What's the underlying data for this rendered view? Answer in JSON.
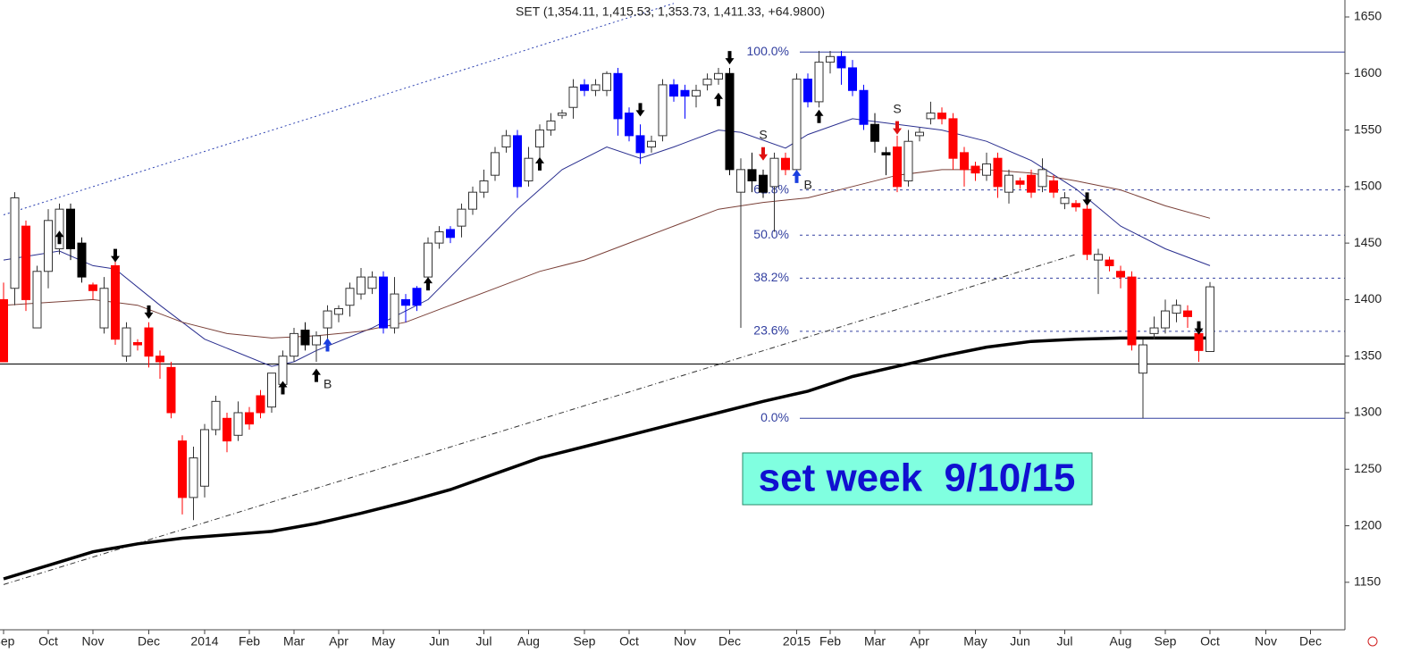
{
  "chart_data": {
    "type": "candlestick",
    "title": "SET (1,354.11, 1,415.53, 1,353.73, 1,411.33, +64.9800)",
    "annotation": "set week  9/10/15",
    "categories": [
      "Sep",
      null,
      null,
      null,
      "Oct",
      null,
      null,
      null,
      "Nov",
      null,
      null,
      null,
      null,
      "Dec",
      null,
      null,
      null,
      null,
      "2014",
      null,
      null,
      null,
      "Feb",
      null,
      null,
      null,
      "Mar",
      null,
      null,
      null,
      "Apr",
      null,
      null,
      null,
      "May",
      null,
      null,
      null,
      null,
      "Jun",
      null,
      null,
      null,
      "Jul",
      null,
      null,
      null,
      "Aug",
      null,
      null,
      null,
      null,
      "Sep",
      null,
      null,
      null,
      "Oct",
      null,
      null,
      null,
      null,
      "Nov",
      null,
      null,
      null,
      "Dec",
      null,
      null,
      null,
      null,
      null,
      "2015",
      null,
      null,
      "Feb",
      null,
      null,
      null,
      "Mar",
      null,
      null,
      null,
      "Apr",
      null,
      null,
      null,
      null,
      "May",
      null,
      null,
      null,
      "Jun",
      null,
      null,
      null,
      "Jul",
      null,
      null,
      null,
      null,
      "Aug",
      null,
      null,
      null,
      "Sep",
      null,
      null,
      null,
      "Oct",
      null,
      null,
      null,
      null,
      "Nov",
      null,
      null,
      null,
      "Dec",
      null,
      null
    ],
    "open": [
      1400,
      1410,
      1465,
      1375,
      1425,
      1445,
      1480,
      1450,
      1413,
      1375,
      1430,
      1350,
      1362,
      1375,
      1350,
      1340,
      1275,
      1225,
      1235,
      1285,
      1295,
      1280,
      1300,
      1315,
      1305,
      1325,
      1350,
      1373,
      1360,
      1375,
      1387,
      1395,
      1405,
      1410,
      1420,
      1375,
      1400,
      1410,
      1420,
      1450,
      1462,
      1465,
      1480,
      1495,
      1510,
      1535,
      1545,
      1505,
      1535,
      1550,
      1563,
      1570,
      1590,
      1585,
      1585,
      1600,
      1565,
      1545,
      1535,
      1545,
      1590,
      1585,
      1580,
      1590,
      1595,
      1600,
      1495,
      1515,
      1510,
      1500,
      1525,
      1515,
      1595,
      1575,
      1610,
      1615,
      1605,
      1585,
      1555,
      1530,
      1535,
      1505,
      1545,
      1560,
      1565,
      1560,
      1530,
      1518,
      1510,
      1525,
      1495,
      1505,
      1510,
      1500,
      1505,
      1485,
      1485,
      1480,
      1435,
      1435,
      1425,
      1420,
      1335,
      1370,
      1375,
      1388,
      1390,
      1370,
      1354.11,
      null,
      null,
      null,
      null,
      null,
      null,
      null,
      null,
      null,
      null,
      null
    ],
    "high": [
      1415,
      1495,
      1470,
      1430,
      1480,
      1485,
      1485,
      1455,
      1415,
      1420,
      1435,
      1380,
      1365,
      1380,
      1355,
      1345,
      1280,
      1270,
      1290,
      1315,
      1300,
      1310,
      1305,
      1320,
      1335,
      1355,
      1375,
      1380,
      1372,
      1395,
      1395,
      1415,
      1428,
      1425,
      1425,
      1420,
      1405,
      1412,
      1455,
      1465,
      1465,
      1485,
      1500,
      1515,
      1535,
      1550,
      1550,
      1535,
      1555,
      1565,
      1568,
      1595,
      1595,
      1595,
      1602,
      1605,
      1570,
      1555,
      1545,
      1595,
      1595,
      1590,
      1590,
      1600,
      1605,
      1605,
      1525,
      1530,
      1515,
      1530,
      1530,
      1600,
      1600,
      1620,
      1620,
      1620,
      1612,
      1590,
      1565,
      1535,
      1545,
      1550,
      1552,
      1575,
      1570,
      1565,
      1535,
      1522,
      1530,
      1530,
      1515,
      1508,
      1515,
      1525,
      1510,
      1495,
      1488,
      1485,
      1445,
      1438,
      1430,
      1425,
      1365,
      1385,
      1400,
      1400,
      1395,
      1375,
      1415.53,
      null,
      null,
      null,
      null,
      null,
      null,
      null,
      null,
      null,
      null,
      null
    ],
    "low": [
      1345,
      1395,
      1390,
      1380,
      1410,
      1440,
      1435,
      1415,
      1400,
      1370,
      1360,
      1345,
      1355,
      1340,
      1330,
      1295,
      1210,
      1205,
      1225,
      1280,
      1265,
      1275,
      1285,
      1295,
      1300,
      1320,
      1345,
      1355,
      1345,
      1365,
      1380,
      1385,
      1400,
      1405,
      1370,
      1370,
      1380,
      1390,
      1415,
      1445,
      1450,
      1455,
      1475,
      1490,
      1505,
      1530,
      1490,
      1500,
      1520,
      1545,
      1560,
      1560,
      1580,
      1580,
      1580,
      1545,
      1540,
      1520,
      1530,
      1540,
      1575,
      1560,
      1570,
      1585,
      1590,
      1510,
      1375,
      1495,
      1490,
      1460,
      1510,
      1510,
      1570,
      1570,
      1600,
      1590,
      1580,
      1550,
      1530,
      1510,
      1495,
      1500,
      1540,
      1555,
      1555,
      1515,
      1500,
      1505,
      1505,
      1490,
      1485,
      1498,
      1490,
      1495,
      1490,
      1480,
      1478,
      1435,
      1405,
      1425,
      1410,
      1355,
      1295,
      1365,
      1370,
      1380,
      1375,
      1345,
      1353.73,
      null,
      null,
      null,
      null,
      null,
      null,
      null,
      null,
      null,
      null,
      null
    ],
    "close": [
      1345,
      1490,
      1400,
      1425,
      1470,
      1480,
      1445,
      1420,
      1408,
      1410,
      1365,
      1375,
      1360,
      1350,
      1345,
      1300,
      1225,
      1260,
      1285,
      1310,
      1275,
      1300,
      1290,
      1300,
      1335,
      1350,
      1370,
      1360,
      1368,
      1390,
      1392,
      1410,
      1420,
      1420,
      1375,
      1405,
      1395,
      1395,
      1450,
      1460,
      1455,
      1480,
      1495,
      1505,
      1530,
      1545,
      1500,
      1525,
      1550,
      1558,
      1565,
      1588,
      1585,
      1590,
      1600,
      1560,
      1545,
      1530,
      1540,
      1590,
      1580,
      1580,
      1585,
      1595,
      1600,
      1515,
      1515,
      1505,
      1495,
      1525,
      1515,
      1595,
      1575,
      1610,
      1615,
      1605,
      1585,
      1555,
      1540,
      1528,
      1500,
      1540,
      1548,
      1565,
      1560,
      1525,
      1515,
      1512,
      1520,
      1500,
      1510,
      1502,
      1495,
      1515,
      1495,
      1490,
      1482,
      1440,
      1440,
      1430,
      1420,
      1360,
      1360,
      1375,
      1390,
      1395,
      1385,
      1355,
      1411.33,
      null,
      null,
      null,
      null,
      null,
      null,
      null,
      null,
      null,
      null,
      null
    ],
    "candle_colors": [
      "red",
      "white",
      "red",
      "white",
      "white",
      "white",
      "black",
      "black",
      "red",
      "white",
      "red",
      "white",
      "red",
      "red",
      "red",
      "red",
      "red",
      "white",
      "white",
      "white",
      "red",
      "white",
      "red",
      "red",
      "white",
      "white",
      "white",
      "black",
      "white",
      "white",
      "white",
      "white",
      "white",
      "white",
      "blue",
      "white",
      "blue",
      "blue",
      "white",
      "white",
      "blue",
      "white",
      "white",
      "white",
      "white",
      "white",
      "blue",
      "white",
      "white",
      "white",
      "white",
      "white",
      "blue",
      "white",
      "white",
      "blue",
      "blue",
      "blue",
      "white",
      "white",
      "blue",
      "blue",
      "white",
      "white",
      "white",
      "black",
      "white",
      "black",
      "black",
      "white",
      "red",
      "white",
      "blue",
      "white",
      "white",
      "blue",
      "blue",
      "blue",
      "black",
      "black",
      "red",
      "white",
      "white",
      "white",
      "red",
      "red",
      "red",
      "red",
      "white",
      "red",
      "white",
      "red",
      "red",
      "white",
      "red",
      "white",
      "red",
      "red",
      "white",
      "red",
      "red",
      "red",
      "white",
      "white",
      "white",
      "white",
      "red",
      "red",
      "white",
      null,
      null,
      null,
      null,
      null,
      null,
      null,
      null,
      null,
      null,
      null
    ],
    "lines": [
      {
        "color": "#2a2f8f",
        "style": "thin",
        "x": [
          0,
          5,
          8,
          10,
          14,
          18,
          24,
          26,
          28,
          33,
          38,
          42,
          46,
          50,
          54,
          57,
          60,
          64,
          66,
          70,
          72,
          76,
          80,
          84,
          88,
          92,
          96,
          100,
          104,
          108
        ],
        "values": [
          1435,
          1443,
          1430,
          1427,
          1395,
          1365,
          1341,
          1345,
          1355,
          1375,
          1400,
          1440,
          1480,
          1515,
          1535,
          1525,
          1535,
          1550,
          1548,
          1534,
          1546,
          1560,
          1555,
          1550,
          1540,
          1523,
          1498,
          1465,
          1445,
          1430
        ]
      },
      {
        "color": "#7a4038",
        "style": "thin",
        "x": [
          0,
          8,
          12,
          16,
          20,
          24,
          28,
          32,
          36,
          40,
          44,
          48,
          52,
          56,
          60,
          64,
          68,
          72,
          76,
          80,
          84,
          88,
          92,
          96,
          100,
          104,
          108
        ],
        "values": [
          1395,
          1400,
          1395,
          1380,
          1370,
          1366,
          1368,
          1372,
          1380,
          1395,
          1410,
          1425,
          1435,
          1450,
          1465,
          1480,
          1486,
          1490,
          1500,
          1510,
          1515,
          1515,
          1512,
          1505,
          1497,
          1483,
          1472
        ]
      },
      {
        "color": "#000000",
        "style": "thick",
        "x": [
          0,
          4,
          8,
          12,
          16,
          20,
          24,
          28,
          32,
          36,
          40,
          44,
          48,
          52,
          56,
          60,
          64,
          68,
          72,
          76,
          80,
          84,
          88,
          92,
          96,
          100,
          104,
          108
        ],
        "values": [
          1153,
          1165,
          1177,
          1184,
          1189,
          1192,
          1195,
          1202,
          1211,
          1221,
          1232,
          1246,
          1260,
          1270,
          1280,
          1290,
          1300,
          1310,
          1319,
          1332,
          1341,
          1350,
          1358,
          1363,
          1365,
          1366,
          1366,
          1366
        ]
      }
    ],
    "trendlines": [
      {
        "color": "#2a3fb0",
        "style": "dotted",
        "x": [
          0,
          60
        ],
        "values": [
          1475,
          1662
        ]
      },
      {
        "color": "#333333",
        "style": "dashdot",
        "x": [
          0,
          96
        ],
        "values": [
          1148,
          1440
        ]
      }
    ],
    "hlines": [
      {
        "value": 1343,
        "color": "#000000"
      }
    ],
    "fib_levels": [
      {
        "value": 1619,
        "label": "100.0%",
        "style": "solid"
      },
      {
        "value": 1497,
        "label": "61.8%",
        "style": "dotted"
      },
      {
        "value": 1457,
        "label": "50.0%",
        "style": "dotted"
      },
      {
        "value": 1419,
        "label": "38.2%",
        "style": "dotted"
      },
      {
        "value": 1372,
        "label": "23.6%",
        "style": "dotted"
      },
      {
        "value": 1295,
        "label": "0.0%",
        "style": "solid"
      }
    ],
    "fib_color": "#3340a0",
    "signals": [
      {
        "x": 5,
        "value": 1461,
        "direction": "up",
        "color": "#000000"
      },
      {
        "x": 10,
        "value": 1433,
        "direction": "down",
        "color": "#000000"
      },
      {
        "x": 13,
        "value": 1383,
        "direction": "down",
        "color": "#000000"
      },
      {
        "x": 25,
        "value": 1328,
        "direction": "up",
        "color": "#000000"
      },
      {
        "x": 28,
        "value": 1339,
        "direction": "up",
        "color": "#000000",
        "label": "B"
      },
      {
        "x": 29,
        "value": 1366,
        "direction": "up",
        "color": "#1a3fe0"
      },
      {
        "x": 38,
        "value": 1420,
        "direction": "up",
        "color": "#000000"
      },
      {
        "x": 48,
        "value": 1526,
        "direction": "up",
        "color": "#000000"
      },
      {
        "x": 57,
        "value": 1562,
        "direction": "down",
        "color": "#000000"
      },
      {
        "x": 64,
        "value": 1583,
        "direction": "up",
        "color": "#000000"
      },
      {
        "x": 65,
        "value": 1608,
        "direction": "down",
        "color": "#000000"
      },
      {
        "x": 68,
        "value": 1523,
        "direction": "down",
        "color": "#e01010",
        "label": "S"
      },
      {
        "x": 71,
        "value": 1515,
        "direction": "up",
        "color": "#1a3fe0",
        "label": "B"
      },
      {
        "x": 73,
        "value": 1568,
        "direction": "up",
        "color": "#000000"
      },
      {
        "x": 80,
        "value": 1546,
        "direction": "down",
        "color": "#e01010",
        "label": "S"
      },
      {
        "x": 97,
        "value": 1483,
        "direction": "down",
        "color": "#000000"
      },
      {
        "x": 107,
        "value": 1369,
        "direction": "down",
        "color": "#000000"
      }
    ],
    "ylim": [
      1108,
      1665
    ],
    "yticks": [
      1150,
      1200,
      1250,
      1300,
      1350,
      1400,
      1450,
      1500,
      1550,
      1600,
      1650
    ],
    "annotation_background": "#80ffe0"
  }
}
